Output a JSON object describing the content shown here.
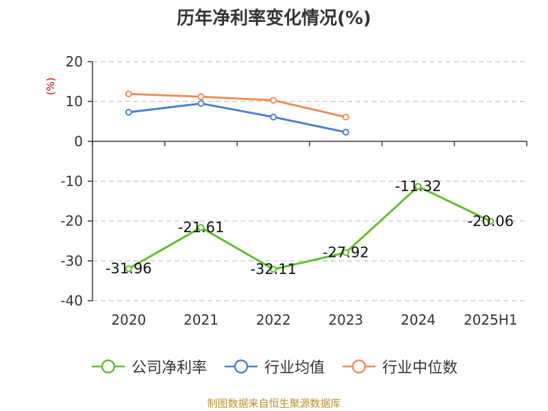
{
  "chart_data": {
    "type": "line",
    "title": "历年净利率变化情况(%)",
    "ylabel": "(%)",
    "categories": [
      "2020",
      "2021",
      "2022",
      "2023",
      "2024",
      "2025H1"
    ],
    "ylim": [
      -40,
      20
    ],
    "yticks": [
      20,
      10,
      0,
      -10,
      -20,
      -30,
      -40
    ],
    "grid": true,
    "legend_position": "bottom",
    "series": [
      {
        "name": "公司净利率",
        "color": "#5cbf2a",
        "values": [
          -31.96,
          -21.61,
          -32.11,
          -27.92,
          -11.32,
          -20.06
        ],
        "labels": [
          "-31.96",
          "-21.61",
          "-32.11",
          "-27.92",
          "-11.32",
          "-20.06"
        ]
      },
      {
        "name": "行业均值",
        "color": "#4a7fd4",
        "values": [
          7.3,
          9.5,
          6.1,
          2.3,
          null,
          null
        ]
      },
      {
        "name": "行业中位数",
        "color": "#f28c55",
        "values": [
          11.9,
          11.2,
          10.3,
          6.1,
          null,
          null
        ]
      }
    ]
  },
  "source": "制图数据来自恒生聚源数据库"
}
